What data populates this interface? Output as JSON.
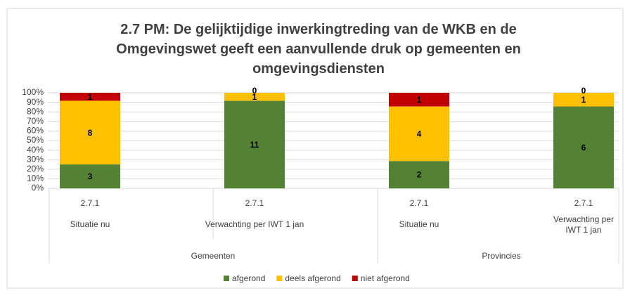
{
  "chart_data": {
    "type": "bar",
    "stacked": "percent",
    "title": "2.7 PM: De gelijktijdige inwerkingtreding van de WKB en de Omgevingswet geeft een aanvullende druk op gemeenten en omgevingsdiensten",
    "categories": [
      "2.7.1",
      "2.7.1",
      "2.7.1",
      "2.7.1"
    ],
    "subcategories": [
      "Situatie nu",
      "Verwachting per IWT 1 jan",
      "Situatie nu",
      "Verwachting per IWT 1 jan"
    ],
    "groups": [
      "Gemeenten",
      "Provincies"
    ],
    "series": [
      {
        "name": "afgerond",
        "color": "#548235",
        "values": [
          3,
          11,
          2,
          6
        ]
      },
      {
        "name": "deels afgerond",
        "color": "#ffc000",
        "values": [
          8,
          1,
          4,
          1
        ]
      },
      {
        "name": "niet afgerond",
        "color": "#c00000",
        "values": [
          1,
          0,
          1,
          0
        ]
      }
    ],
    "ylim": [
      0,
      100
    ],
    "yticks": [
      {
        "value": 0,
        "label": "0%"
      },
      {
        "value": 10,
        "label": "10%"
      },
      {
        "value": 20,
        "label": "20%"
      },
      {
        "value": 30,
        "label": "30%"
      },
      {
        "value": 40,
        "label": "40%"
      },
      {
        "value": 50,
        "label": "50%"
      },
      {
        "value": 60,
        "label": "60%"
      },
      {
        "value": 70,
        "label": "70%"
      },
      {
        "value": 80,
        "label": "80%"
      },
      {
        "value": 90,
        "label": "90%"
      },
      {
        "value": 100,
        "label": "100%"
      }
    ],
    "grid": true,
    "legend": "bottom"
  }
}
